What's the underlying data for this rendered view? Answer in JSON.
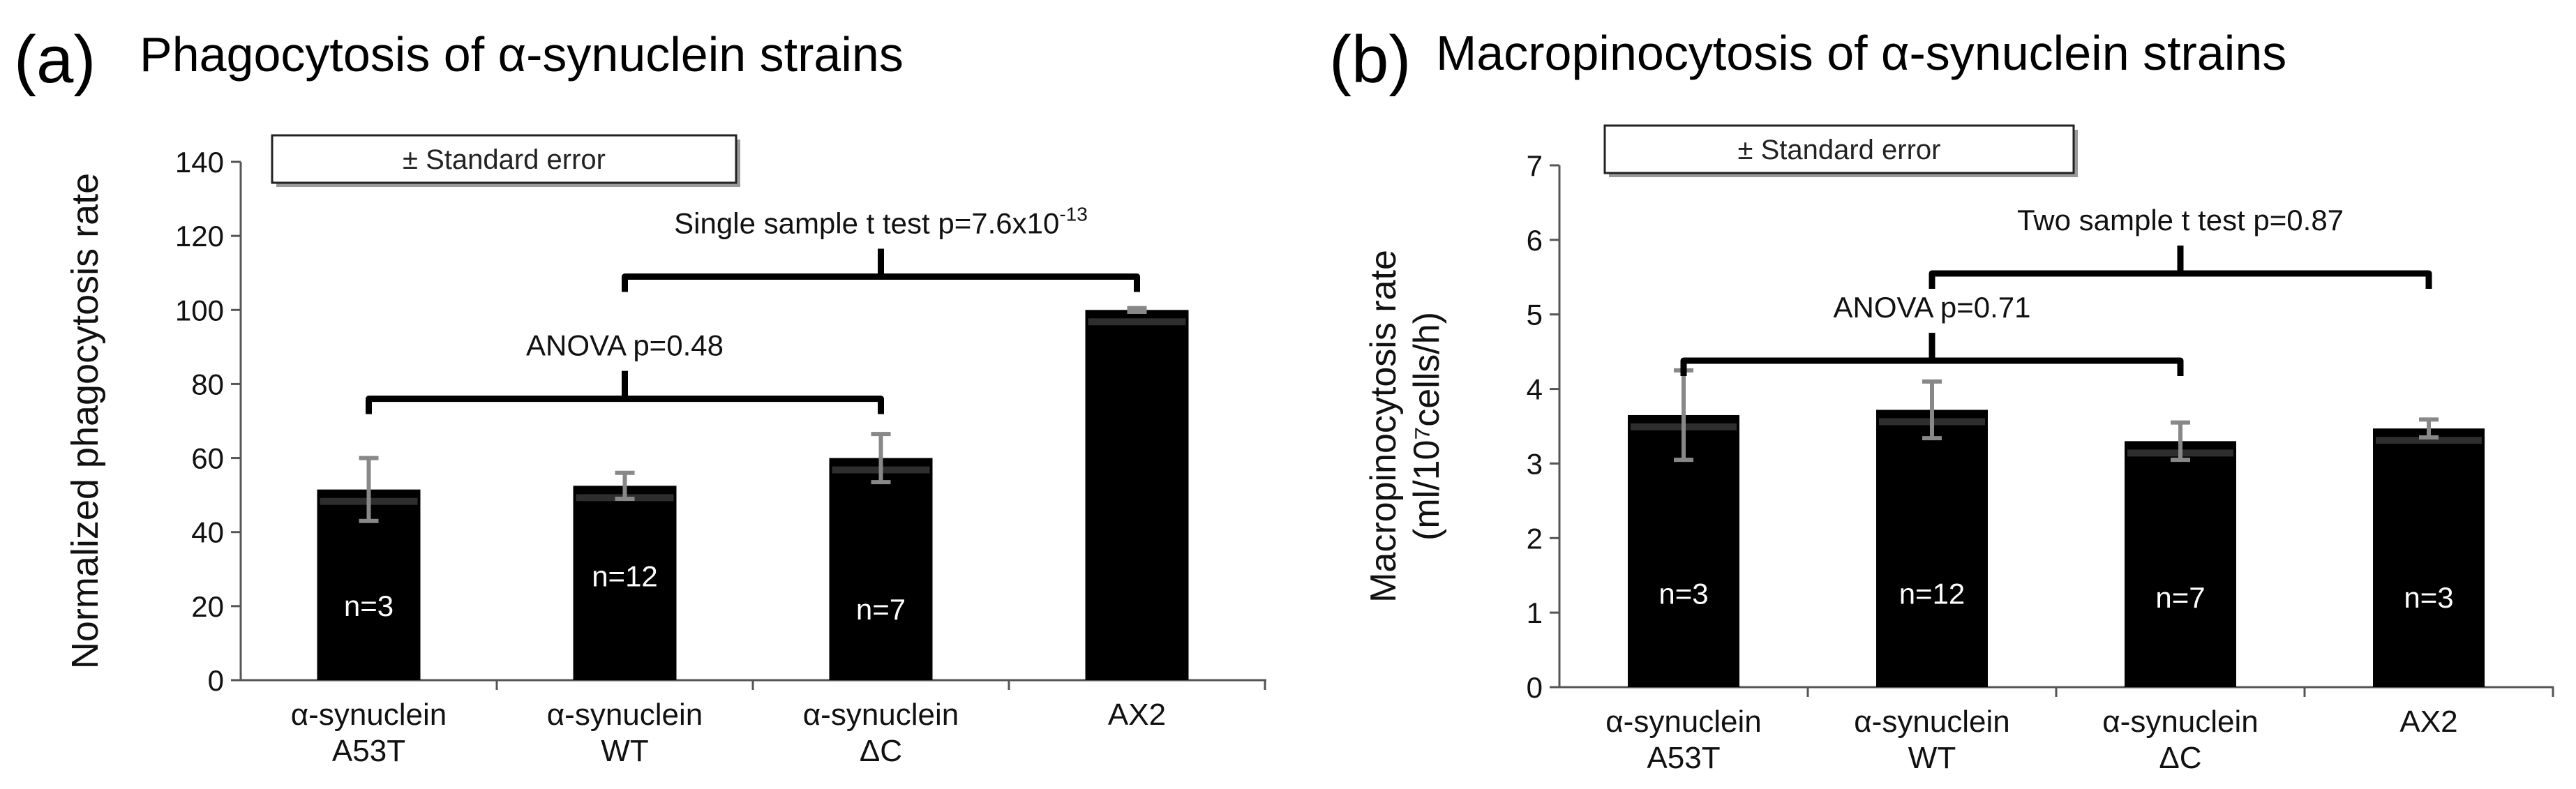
{
  "panels": [
    {
      "letter": "(a)",
      "title": "Phagocytosis of α-synuclein strains",
      "legend": "± Standard error",
      "ylabel_lines": [
        "Normalized phagocytosis rate"
      ],
      "chart_data": {
        "type": "bar",
        "title": "Phagocytosis of α-synuclein strains",
        "ylabel": "Normalized phagocytosis rate",
        "xlabel": "",
        "ylim": [
          0,
          140
        ],
        "yticks": [
          0,
          20,
          40,
          60,
          80,
          100,
          120,
          140
        ],
        "categories": [
          [
            "α-synuclein",
            "A53T"
          ],
          [
            "α-synuclein",
            "WT"
          ],
          [
            "α-synuclein",
            "ΔC"
          ],
          [
            "AX2"
          ]
        ],
        "values": [
          51.5,
          52.5,
          60,
          100
        ],
        "errors": [
          8.5,
          3.5,
          6.5,
          0.5
        ],
        "n_labels": [
          "n=3",
          "n=12",
          "n=7",
          ""
        ],
        "n_label_y": [
          20,
          28,
          19,
          null
        ],
        "annotations": [
          {
            "text": "ANOVA p=0.48",
            "from": 0,
            "to": 2,
            "bracket_y": 76,
            "sup": ""
          },
          {
            "text": "Single sample t test p=7.6x10",
            "sup": "-13",
            "from": 1,
            "to": 3,
            "bracket_y": 109
          }
        ]
      }
    },
    {
      "letter": "(b)",
      "title": "Macropinocytosis of α-synuclein strains",
      "legend": "± Standard  error",
      "ylabel_lines": [
        "Macropinocytosis rate",
        "(ml/10⁷cells/h)"
      ],
      "chart_data": {
        "type": "bar",
        "title": "Macropinocytosis of α-synuclein strains",
        "ylabel": "Macropinocytosis rate (ml/10⁷cells/h)",
        "xlabel": "",
        "ylim": [
          0,
          7
        ],
        "yticks": [
          0,
          1,
          2,
          3,
          4,
          5,
          6,
          7
        ],
        "categories": [
          [
            "α-synuclein",
            "A53T"
          ],
          [
            "α-synuclein",
            "WT"
          ],
          [
            "α-synuclein",
            "ΔC"
          ],
          [
            "AX2"
          ]
        ],
        "values": [
          3.65,
          3.72,
          3.3,
          3.47
        ],
        "errors": [
          0.6,
          0.38,
          0.25,
          0.12
        ],
        "n_labels": [
          "n=3",
          "n=12",
          "n=7",
          "n=3"
        ],
        "n_label_y": [
          1.25,
          1.25,
          1.2,
          1.2
        ],
        "annotations": [
          {
            "text": "ANOVA p=0.71",
            "from": 0,
            "to": 2,
            "bracket_y": 4.38,
            "sup": ""
          },
          {
            "text": "Two sample t test p=0.87",
            "sup": "",
            "from": 1,
            "to": 3,
            "bracket_y": 5.55
          }
        ]
      }
    }
  ]
}
